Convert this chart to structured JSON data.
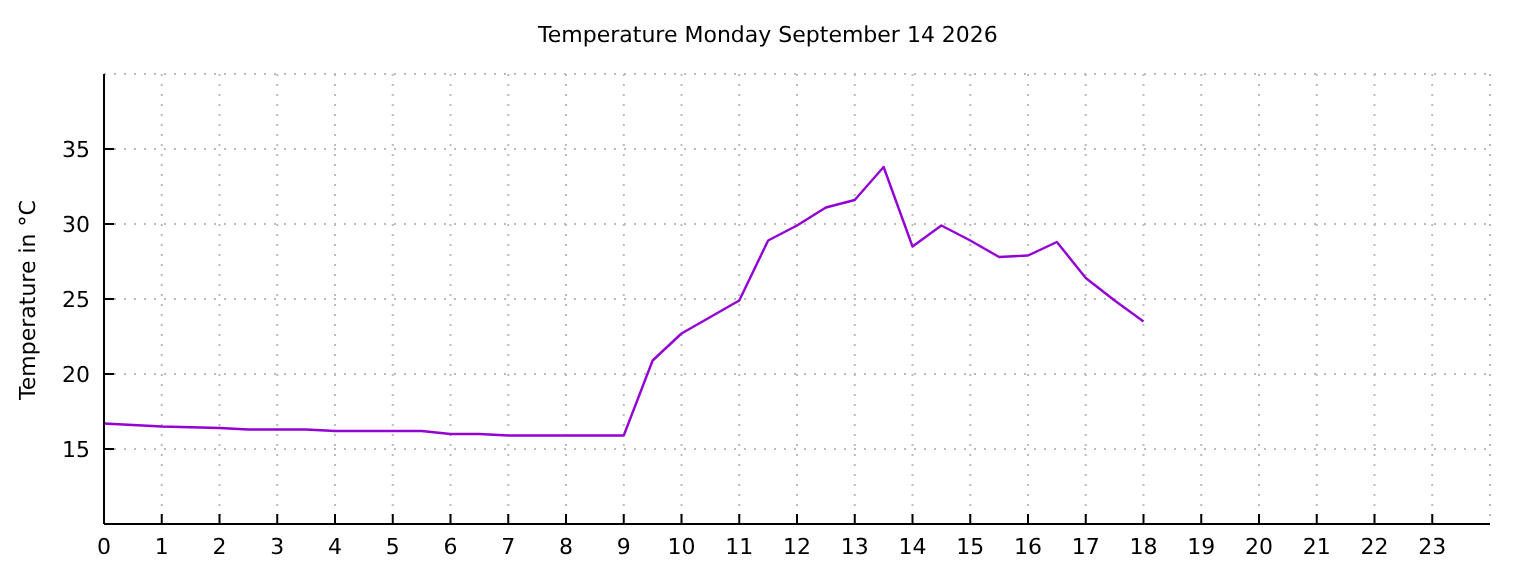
{
  "chart_data": {
    "type": "line",
    "title": "Temperature Monday September 14 2026",
    "ylabel": "Temperature in °C",
    "x": [
      0,
      1,
      2,
      2.5,
      3,
      3.5,
      4,
      5,
      5.5,
      6,
      6.5,
      7,
      8,
      9,
      9.5,
      10,
      10.5,
      11,
      11.5,
      12,
      12.5,
      13,
      13.5,
      14,
      14.5,
      15,
      15.5,
      16,
      16.5,
      17,
      17.5,
      18
    ],
    "series": [
      {
        "color": "#9400d3",
        "values": [
          16.7,
          16.5,
          16.4,
          16.3,
          16.3,
          16.3,
          16.2,
          16.2,
          16.2,
          16.0,
          16.0,
          15.9,
          15.9,
          15.9,
          20.9,
          22.7,
          23.8,
          24.9,
          28.9,
          29.9,
          31.1,
          31.6,
          33.8,
          28.5,
          29.9,
          28.9,
          27.8,
          27.9,
          28.8,
          26.4,
          24.9,
          23.5
        ]
      }
    ],
    "xlim": [
      0,
      24
    ],
    "xticks": [
      0,
      1,
      2,
      3,
      4,
      5,
      6,
      7,
      8,
      9,
      10,
      11,
      12,
      13,
      14,
      15,
      16,
      17,
      18,
      19,
      20,
      21,
      22,
      23
    ],
    "ylim": [
      10,
      40
    ],
    "yticks": [
      15,
      20,
      25,
      30,
      35
    ],
    "grid": true,
    "marker": "none",
    "line_style": "solid",
    "legend": false
  }
}
